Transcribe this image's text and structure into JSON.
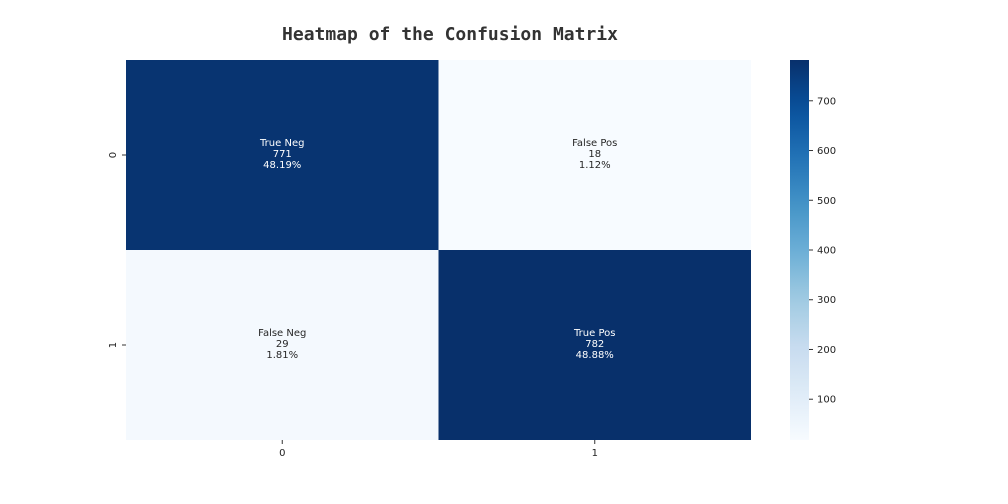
{
  "chart_data": {
    "type": "heatmap",
    "title": "Heatmap of the Confusion Matrix",
    "x_ticks": [
      "0",
      "1"
    ],
    "y_ticks": [
      "0",
      "1"
    ],
    "values": [
      [
        771,
        18
      ],
      [
        29,
        782
      ]
    ],
    "cell_labels": [
      [
        {
          "name": "True Neg",
          "count": "771",
          "percent": "48.19%"
        },
        {
          "name": "False Pos",
          "count": "18",
          "percent": "1.12%"
        }
      ],
      [
        {
          "name": "False Neg",
          "count": "29",
          "percent": "1.81%"
        },
        {
          "name": "True Pos",
          "count": "782",
          "percent": "48.88%"
        }
      ]
    ],
    "colormap": "Blues",
    "colorbar": {
      "range": [
        18,
        782
      ],
      "ticks": [
        100,
        200,
        300,
        400,
        500,
        600,
        700
      ],
      "tick_labels": [
        "100",
        "200",
        "300",
        "400",
        "500",
        "600",
        "700"
      ]
    },
    "colors": {
      "low": "#f7fbff",
      "high": "#08306b"
    }
  }
}
